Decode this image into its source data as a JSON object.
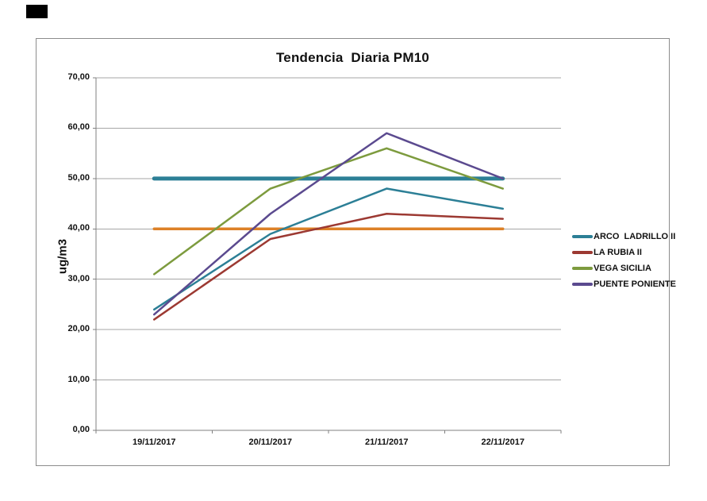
{
  "artifact": {
    "color": "#000000"
  },
  "chart_data": {
    "type": "line",
    "title": "Tendencia  Diaria PM10",
    "ylabel": "ug/m3",
    "xlabel": "",
    "categories": [
      "19/11/2017",
      "20/11/2017",
      "21/11/2017",
      "22/11/2017"
    ],
    "series": [
      {
        "name": "ARCO  LADRILLO II",
        "color": "#2C7F96",
        "width": 2.5,
        "values": [
          24,
          39,
          48,
          44
        ]
      },
      {
        "name": "LA RUBIA II",
        "color": "#9C3932",
        "width": 2.5,
        "values": [
          22,
          38,
          43,
          42
        ]
      },
      {
        "name": "VEGA SICILIA",
        "color": "#7D9B3E",
        "width": 2.5,
        "values": [
          31,
          48,
          56,
          48
        ]
      },
      {
        "name": "PUENTE PONIENTE",
        "color": "#5B4A8F",
        "width": 2.5,
        "values": [
          23,
          43,
          59,
          50
        ]
      }
    ],
    "reference_lines": [
      {
        "value": 50,
        "color": "#2C7F96",
        "width": 5
      },
      {
        "value": 40,
        "color": "#DD8127",
        "width": 3.5
      }
    ],
    "ylim": [
      0,
      70
    ],
    "ytick_step": 10,
    "yticks": [
      {
        "value": 0,
        "label": "0,00"
      },
      {
        "value": 10,
        "label": "10,00"
      },
      {
        "value": 20,
        "label": "20,00"
      },
      {
        "value": 30,
        "label": "30,00"
      },
      {
        "value": 40,
        "label": "40,00"
      },
      {
        "value": 50,
        "label": "50,00"
      },
      {
        "value": 60,
        "label": "60,00"
      },
      {
        "value": 70,
        "label": "70,00"
      }
    ],
    "grid": "horizontal",
    "legend_position": "right",
    "axis_color": "#808080",
    "gridline_color": "#a6a6a6"
  }
}
